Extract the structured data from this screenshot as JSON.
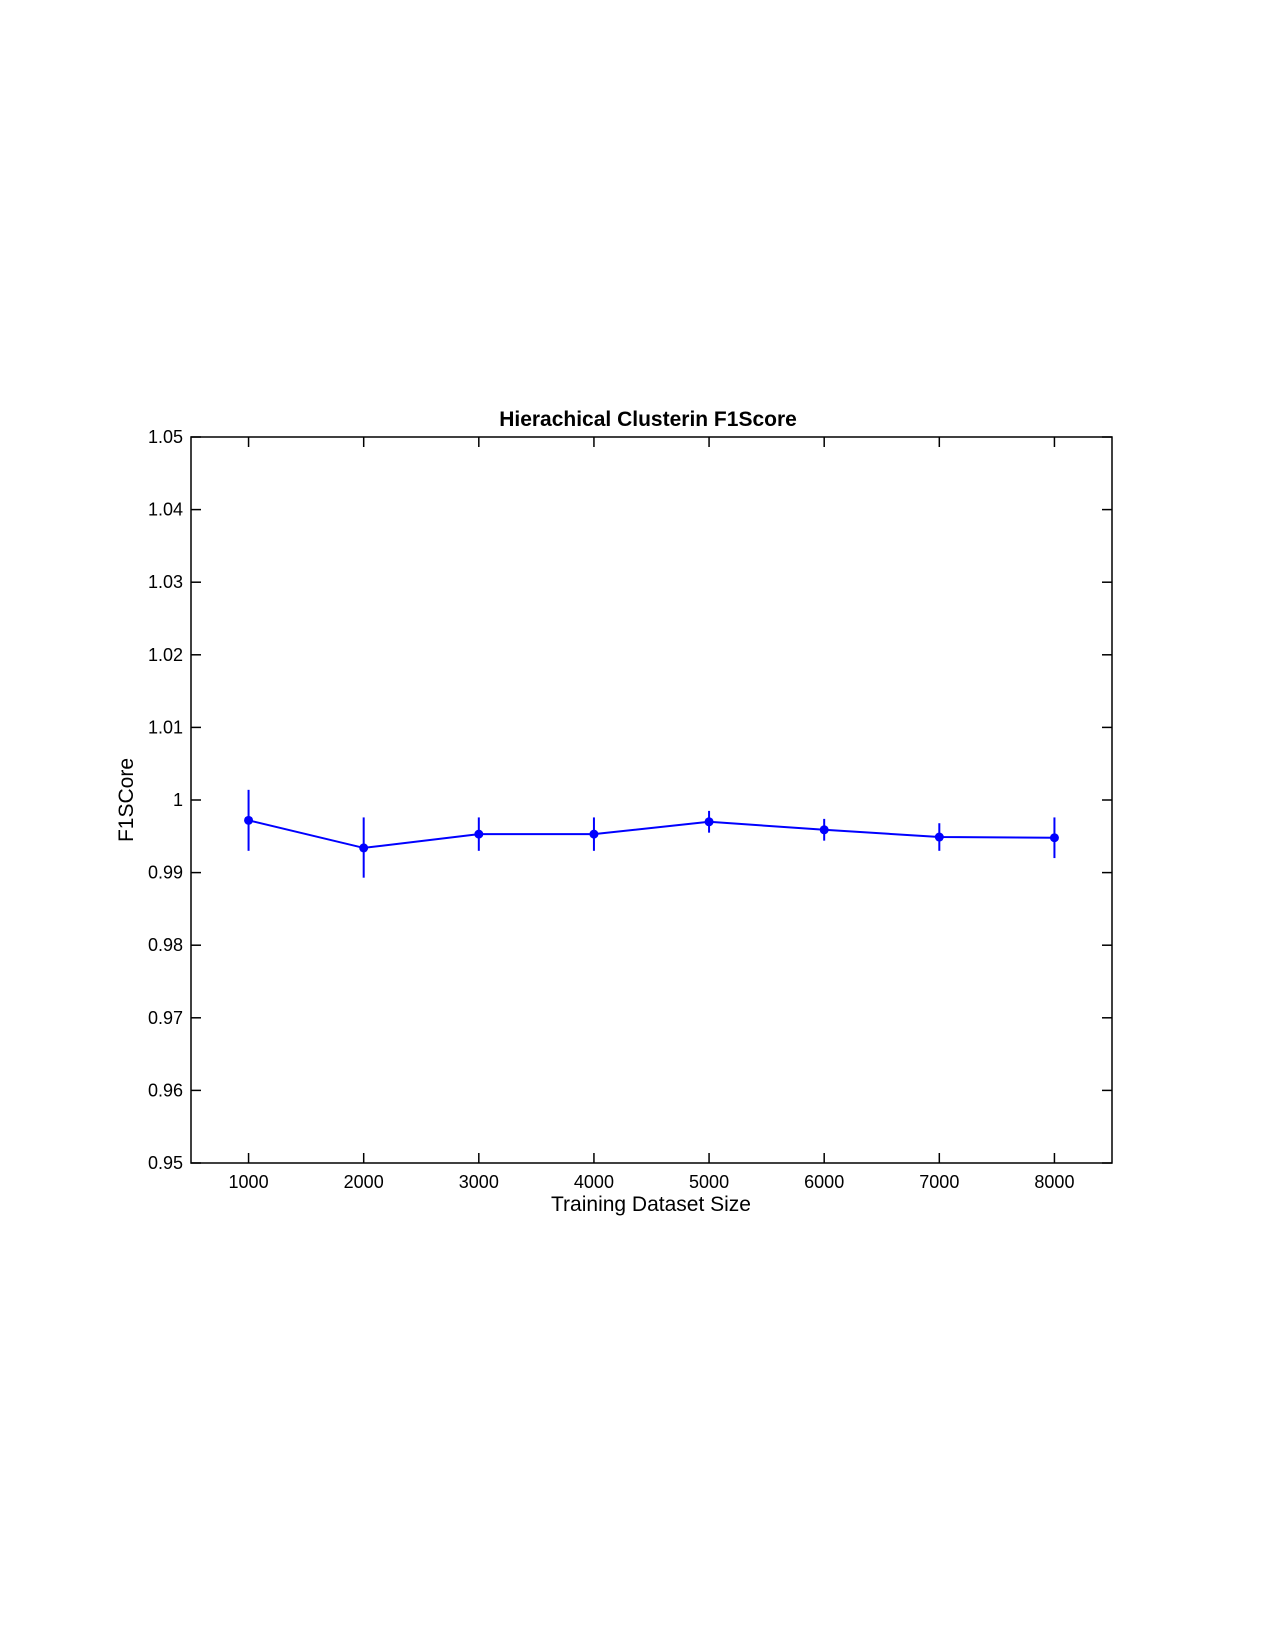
{
  "chart_data": {
    "type": "line",
    "title": "Hierachical Clusterin F1Score",
    "xlabel": "Training Dataset Size",
    "ylabel": "F1SCore",
    "xlim": [
      500,
      8500
    ],
    "ylim": [
      0.95,
      1.05
    ],
    "x_ticks": [
      1000,
      2000,
      3000,
      4000,
      5000,
      6000,
      7000,
      8000
    ],
    "x_tick_labels": [
      "1000",
      "2000",
      "3000",
      "4000",
      "5000",
      "6000",
      "7000",
      "8000"
    ],
    "y_ticks": [
      0.95,
      0.96,
      0.97,
      0.98,
      0.99,
      1.0,
      1.01,
      1.02,
      1.03,
      1.04,
      1.05
    ],
    "y_tick_labels": [
      "0.95",
      "0.96",
      "0.97",
      "0.98",
      "0.99",
      "1",
      "1.01",
      "1.02",
      "1.03",
      "1.04",
      "1.05"
    ],
    "grid": false,
    "x": [
      1000,
      2000,
      3000,
      4000,
      5000,
      6000,
      7000,
      8000
    ],
    "series": [
      {
        "values": [
          0.9972,
          0.9934,
          0.9953,
          0.9953,
          0.997,
          0.9959,
          0.9949,
          0.9948
        ],
        "error_low": [
          0.993,
          0.9893,
          0.993,
          0.993,
          0.9955,
          0.9944,
          0.993,
          0.992
        ],
        "error_high": [
          1.0014,
          0.9976,
          0.9976,
          0.9976,
          0.9985,
          0.9974,
          0.9968,
          0.9976
        ],
        "color": "#0000ff",
        "marker": "dot",
        "error_bars": true
      }
    ]
  }
}
